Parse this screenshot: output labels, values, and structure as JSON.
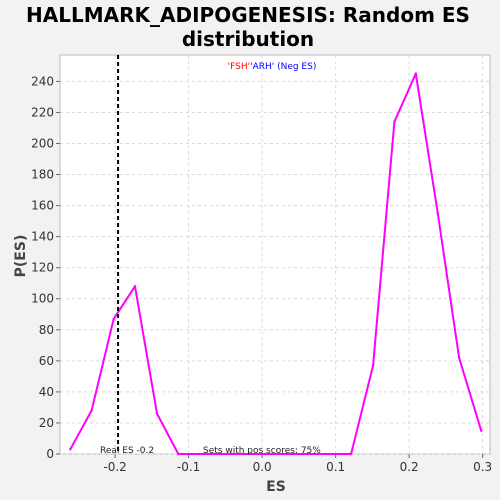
{
  "chart_data": {
    "type": "line",
    "title_line1": "HALLMARK_ADIPOGENESIS: Random ES",
    "title_line2": "distribution",
    "xlabel": "ES",
    "ylabel": "P(ES)",
    "xlim": [
      -0.275,
      0.31
    ],
    "ylim": [
      0,
      257
    ],
    "x_ticks": [
      -0.2,
      -0.1,
      0.0,
      0.1,
      0.2,
      0.3
    ],
    "x_tick_labels": [
      "-0.2",
      "-0.1",
      "0.0",
      "0.1",
      "0.2",
      "0.3"
    ],
    "y_ticks": [
      0,
      20,
      40,
      60,
      80,
      100,
      120,
      140,
      160,
      180,
      200,
      220,
      240
    ],
    "y_tick_labels": [
      "0",
      "20",
      "40",
      "60",
      "80",
      "100",
      "120",
      "140",
      "160",
      "180",
      "200",
      "220",
      "240"
    ],
    "grid": true,
    "series": [
      {
        "color": "#ff00ff",
        "x": [
          -0.261,
          -0.232,
          -0.202,
          -0.173,
          -0.143,
          -0.114,
          -0.085,
          -0.055,
          -0.026,
          0.004,
          0.033,
          0.062,
          0.092,
          0.121,
          0.151,
          0.18,
          0.209,
          0.239,
          0.268,
          0.298
        ],
        "y": [
          3,
          28,
          87,
          108,
          26,
          0,
          0,
          0,
          0,
          0,
          0,
          0,
          0,
          0,
          57,
          214,
          245,
          155,
          62,
          15
        ]
      }
    ],
    "real_es": -0.196,
    "real_es_label": "Real ES -0.2",
    "pos_scores_label": "Sets with pos scores: 75%",
    "legend": {
      "part1": "'FSH'",
      "part1_color": "#ff0000",
      "part2": "'ARH' (Neg ES)",
      "part2_color": "#0000ff"
    }
  }
}
